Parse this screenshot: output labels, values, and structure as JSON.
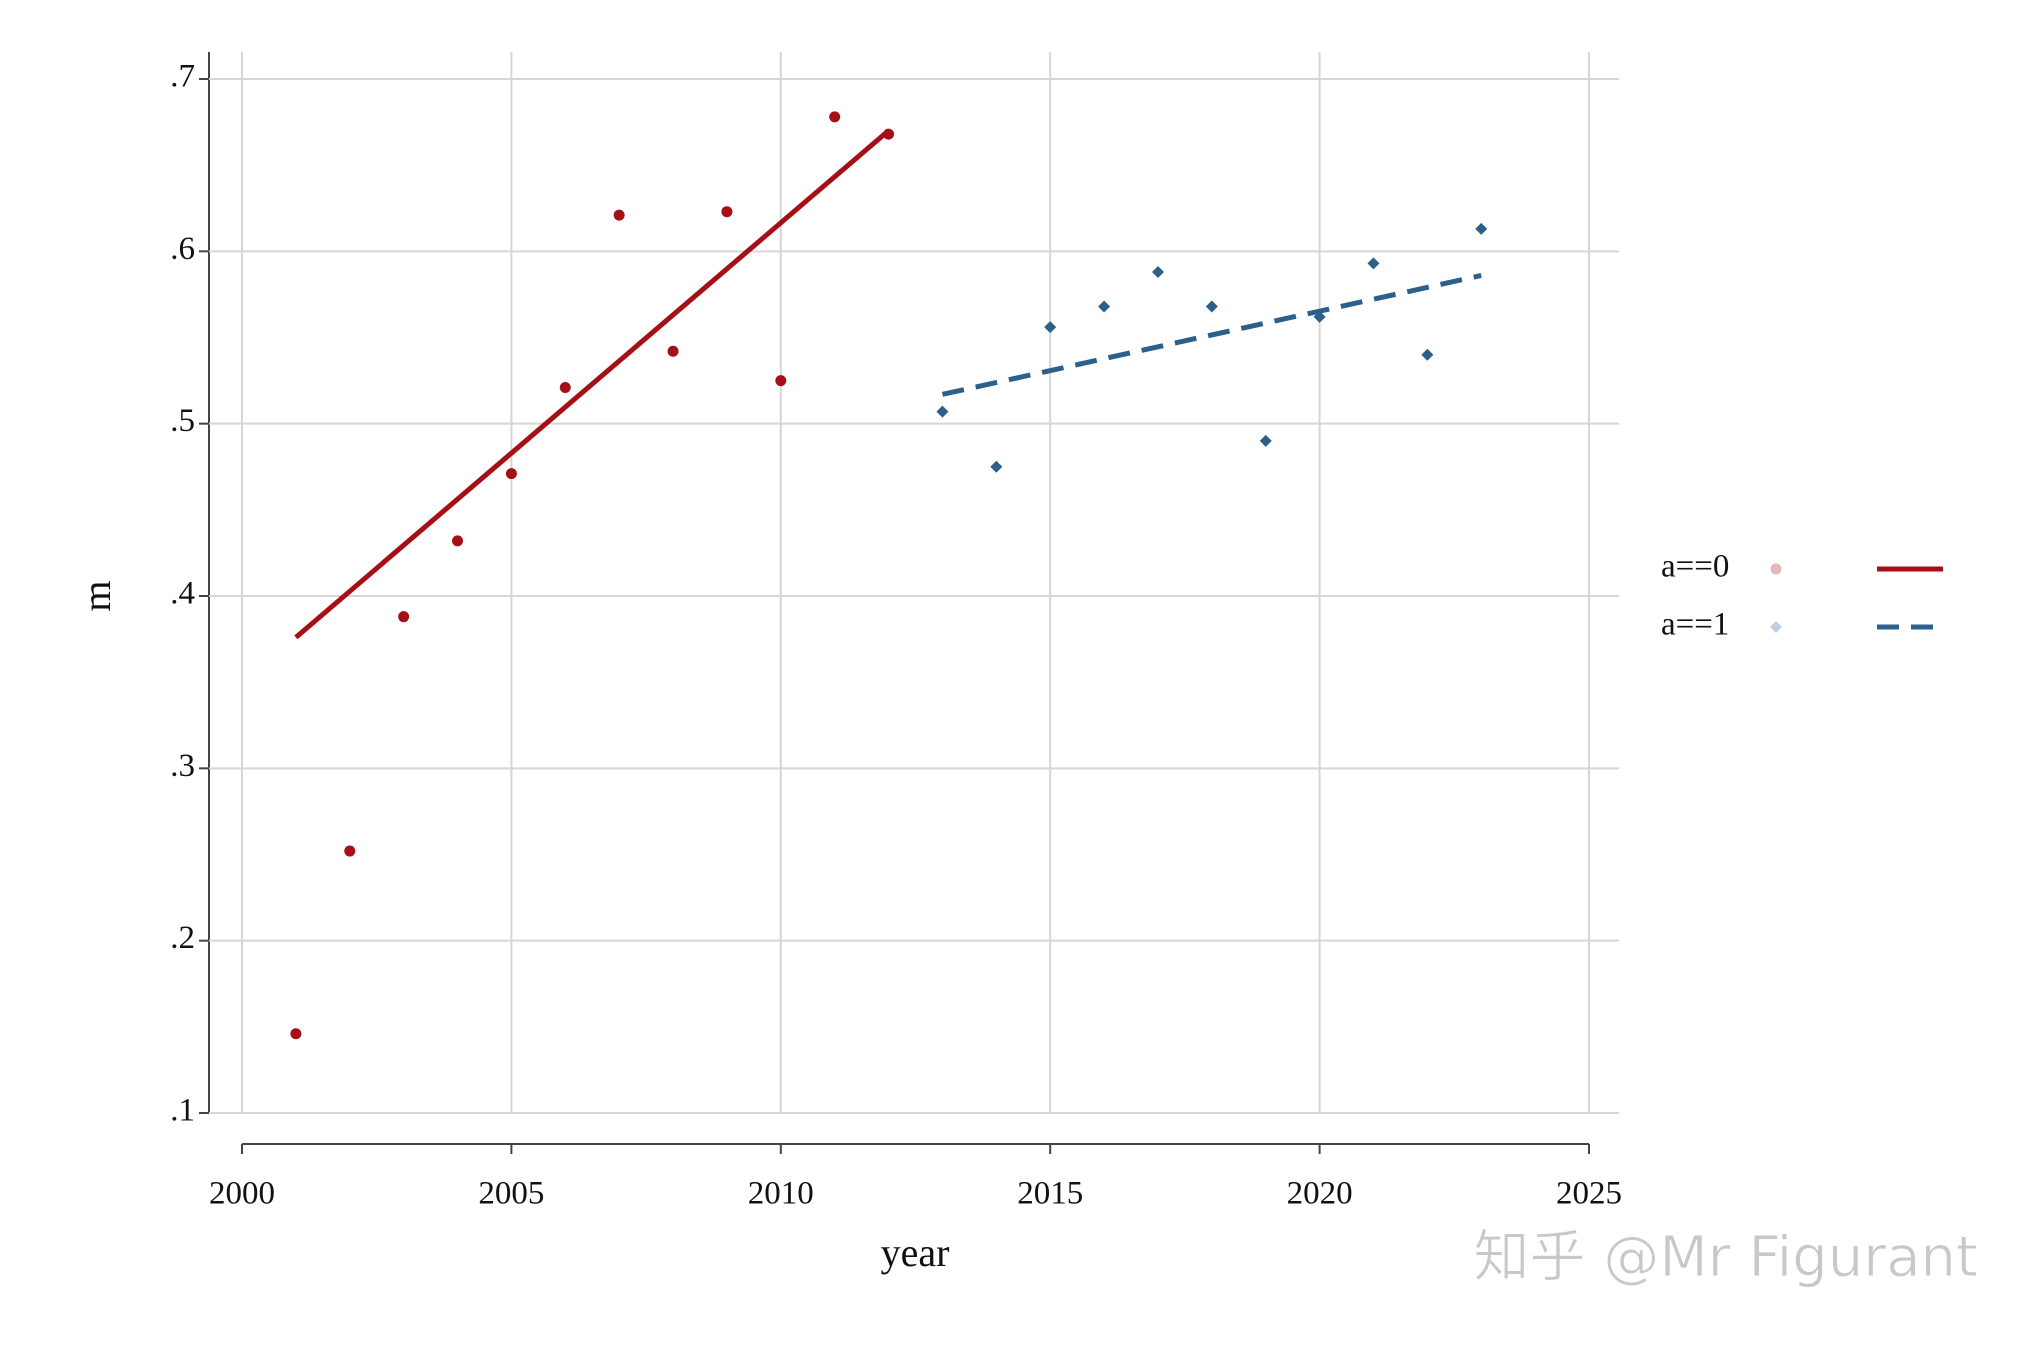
{
  "chart_data": {
    "type": "scatter",
    "x_label": "year",
    "y_label": "m",
    "xlim": [
      2000,
      2025
    ],
    "xticks": [
      2000,
      2005,
      2010,
      2015,
      2020,
      2025
    ],
    "ylim": [
      0.1,
      0.7
    ],
    "yticks": [
      {
        "value": 0.1,
        "label": ".1"
      },
      {
        "value": 0.2,
        "label": ".2"
      },
      {
        "value": 0.3,
        "label": ".3"
      },
      {
        "value": 0.4,
        "label": ".4"
      },
      {
        "value": 0.5,
        "label": ".5"
      },
      {
        "value": 0.6,
        "label": ".6"
      },
      {
        "value": 0.7,
        "label": ".7"
      }
    ],
    "grid": true,
    "legend": "right",
    "series": [
      {
        "name": "a==0",
        "color": "#a50f15",
        "marker": "circle",
        "line_style": "solid",
        "x": [
          2001,
          2002,
          2003,
          2004,
          2005,
          2006,
          2007,
          2008,
          2009,
          2010,
          2011,
          2012
        ],
        "values": [
          0.146,
          0.252,
          0.388,
          0.432,
          0.471,
          0.521,
          0.621,
          0.542,
          0.623,
          0.525,
          0.678,
          0.668
        ],
        "fit": {
          "x": [
            2001,
            2012
          ],
          "values": [
            0.376,
            0.67
          ]
        }
      },
      {
        "name": "a==1",
        "color": "#2c5f8a",
        "marker": "diamond",
        "line_style": "dashed",
        "x": [
          2013,
          2014,
          2015,
          2016,
          2017,
          2018,
          2019,
          2020,
          2021,
          2022,
          2023
        ],
        "values": [
          0.507,
          0.475,
          0.556,
          0.568,
          0.588,
          0.568,
          0.49,
          0.562,
          0.593,
          0.54,
          0.613
        ],
        "fit": {
          "x": [
            2013,
            2023
          ],
          "values": [
            0.517,
            0.586
          ]
        }
      }
    ],
    "watermark": "知乎 @Mr Figurant"
  }
}
